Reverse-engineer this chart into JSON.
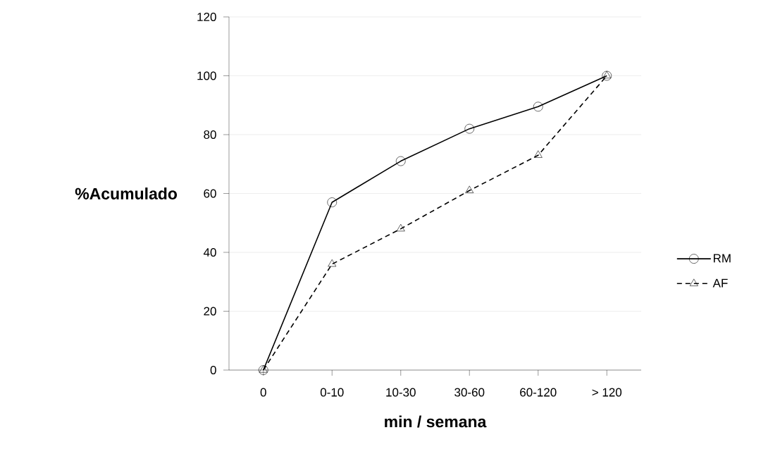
{
  "chart_data": {
    "type": "line",
    "xlabel": "min / semana",
    "ylabel": "%Acumulado",
    "categories": [
      "0",
      "0-10",
      "10-30",
      "30-60",
      "60-120",
      "> 120"
    ],
    "series": [
      {
        "name": "RM",
        "color": "#000000",
        "marker": "circle",
        "line_style": "solid",
        "values": [
          0,
          57,
          71,
          82,
          89.5,
          100
        ]
      },
      {
        "name": "AF",
        "color": "#000000",
        "marker": "triangle",
        "line_style": "dashed",
        "values": [
          0,
          36,
          48,
          61,
          73,
          100
        ]
      }
    ],
    "ylim": [
      0,
      120
    ],
    "yticks": [
      0,
      20,
      40,
      60,
      80,
      100,
      120
    ],
    "grid": "y",
    "legend": "right"
  }
}
